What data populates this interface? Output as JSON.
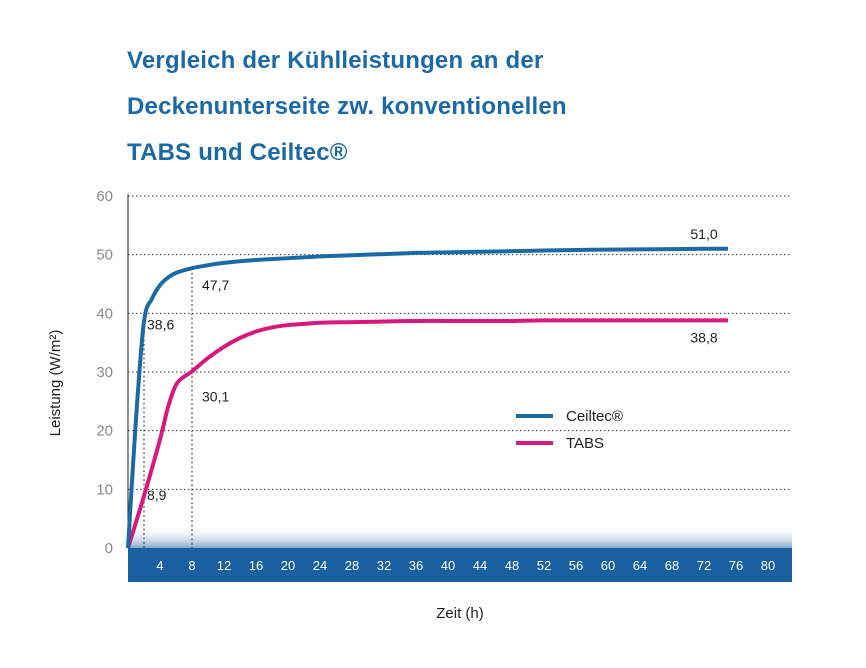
{
  "title_lines": [
    "Vergleich der Kühlleistungen an der",
    "Deckenunterseite zw. konventionellen",
    "TABS und Ceiltec®"
  ],
  "chart_data": {
    "type": "line",
    "xlabel": "Zeit (h)",
    "ylabel": "Leistung (W/m²)",
    "xlim": [
      0,
      83
    ],
    "ylim": [
      0,
      60
    ],
    "x_ticks": [
      4,
      8,
      12,
      16,
      20,
      24,
      28,
      32,
      36,
      40,
      44,
      48,
      52,
      56,
      60,
      64,
      68,
      72,
      76,
      80
    ],
    "y_ticks": [
      0,
      10,
      20,
      30,
      40,
      50,
      60
    ],
    "grid": true,
    "legend_position": "center-right",
    "series": [
      {
        "name": "Ceiltec®",
        "color": "#1b6aa5",
        "x": [
          0,
          1,
          2,
          3,
          4,
          5,
          6,
          8,
          10,
          12,
          16,
          20,
          24,
          28,
          32,
          36,
          40,
          44,
          48,
          52,
          56,
          60,
          64,
          68,
          72,
          75
        ],
        "y": [
          0,
          22,
          38.6,
          42.5,
          44.8,
          46.1,
          46.9,
          47.7,
          48.2,
          48.6,
          49.1,
          49.4,
          49.7,
          49.9,
          50.1,
          50.3,
          50.4,
          50.5,
          50.6,
          50.7,
          50.8,
          50.85,
          50.9,
          50.95,
          51.0,
          51.0
        ]
      },
      {
        "name": "TABS",
        "color": "#d7197e",
        "x": [
          0,
          2,
          4,
          5,
          6,
          7,
          8,
          10,
          12,
          14,
          16,
          18,
          20,
          22,
          24,
          28,
          32,
          36,
          40,
          44,
          48,
          52,
          56,
          60,
          64,
          68,
          72,
          75
        ],
        "y": [
          0,
          8.9,
          18.5,
          24,
          27.8,
          29.2,
          30.1,
          32.4,
          34.3,
          35.8,
          36.9,
          37.6,
          38.0,
          38.2,
          38.4,
          38.5,
          38.6,
          38.7,
          38.7,
          38.7,
          38.7,
          38.8,
          38.8,
          38.8,
          38.8,
          38.8,
          38.8,
          38.8
        ]
      }
    ],
    "annotations": [
      {
        "label": "38,6",
        "x": 2,
        "y": 38.6,
        "series": "Ceiltec®",
        "guide": true
      },
      {
        "label": "47,7",
        "x": 8,
        "y": 47.7,
        "series": "Ceiltec®",
        "guide": true
      },
      {
        "label": "8,9",
        "x": 2,
        "y": 8.9,
        "series": "TABS",
        "guide": false
      },
      {
        "label": "30,1",
        "x": 8,
        "y": 30.1,
        "series": "TABS",
        "guide": false
      },
      {
        "label": "51,0",
        "x": 72,
        "y": 51.0,
        "series": "Ceiltec®",
        "guide": false
      },
      {
        "label": "38,8",
        "x": 72,
        "y": 38.8,
        "series": "TABS",
        "guide": false
      }
    ]
  }
}
